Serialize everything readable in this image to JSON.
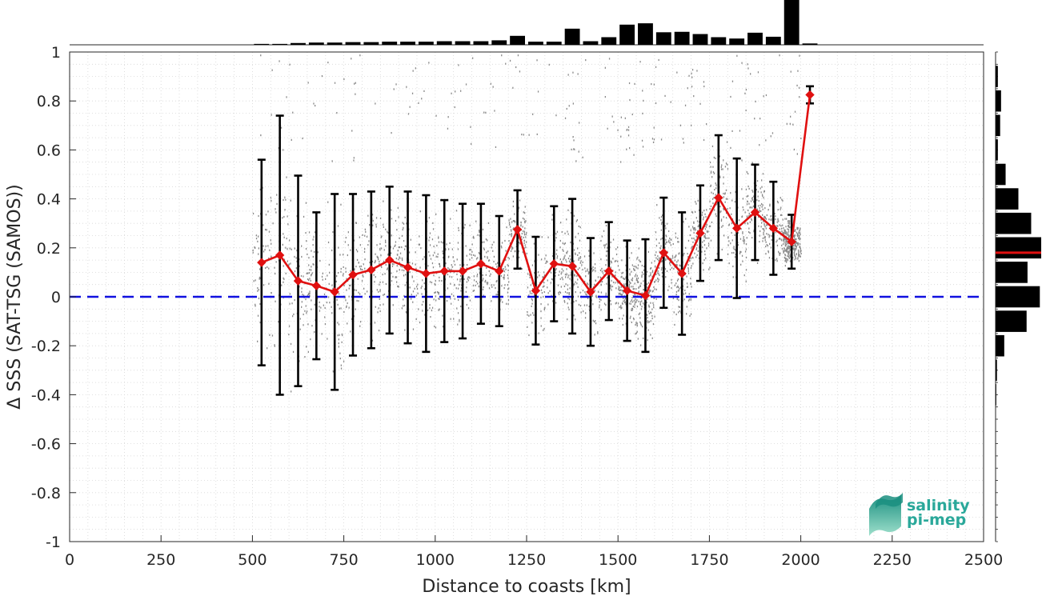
{
  "chart_data": {
    "type": "line",
    "xlabel": "Distance to coasts [km]",
    "ylabel": "Δ SSS (SAT-TSG (SAMOS))",
    "xlim": [
      0,
      2500
    ],
    "ylim": [
      -1,
      1
    ],
    "xticks": [
      0,
      250,
      500,
      750,
      1000,
      1250,
      1500,
      1750,
      2000,
      2250,
      2500
    ],
    "yticks": [
      -1,
      -0.8,
      -0.6,
      -0.4,
      -0.2,
      0,
      0.2,
      0.4,
      0.6,
      0.8,
      1
    ],
    "xtick_labels": [
      "0",
      "250",
      "500",
      "750",
      "1000",
      "1250",
      "1500",
      "1750",
      "2000",
      "2250",
      "2500"
    ],
    "ytick_labels": [
      "-1",
      "-0.8",
      "-0.6",
      "-0.4",
      "-0.2",
      "0",
      "0.2",
      "0.4",
      "0.6",
      "0.8",
      "1"
    ],
    "grid": true,
    "reference_line": {
      "y": 0,
      "style": "dashed",
      "color": "#1010e0"
    },
    "mean_series": {
      "color": "#e01010",
      "x": [
        525,
        575,
        625,
        675,
        725,
        775,
        825,
        875,
        925,
        975,
        1025,
        1075,
        1125,
        1175,
        1225,
        1275,
        1325,
        1375,
        1425,
        1475,
        1525,
        1575,
        1625,
        1675,
        1725,
        1775,
        1825,
        1875,
        1925,
        1975,
        2025
      ],
      "y": [
        0.14,
        0.17,
        0.065,
        0.045,
        0.02,
        0.09,
        0.11,
        0.15,
        0.12,
        0.095,
        0.105,
        0.105,
        0.135,
        0.105,
        0.275,
        0.025,
        0.135,
        0.125,
        0.02,
        0.105,
        0.025,
        0.005,
        0.18,
        0.095,
        0.26,
        0.405,
        0.28,
        0.345,
        0.28,
        0.225,
        0.825
      ],
      "std": [
        0.42,
        0.57,
        0.43,
        0.3,
        0.4,
        0.33,
        0.32,
        0.3,
        0.31,
        0.32,
        0.29,
        0.275,
        0.245,
        0.225,
        0.16,
        0.22,
        0.235,
        0.275,
        0.22,
        0.2,
        0.205,
        0.23,
        0.225,
        0.25,
        0.195,
        0.255,
        0.285,
        0.195,
        0.19,
        0.11,
        0.035
      ]
    },
    "top_histogram": {
      "x": [
        525,
        575,
        625,
        675,
        725,
        775,
        825,
        875,
        925,
        975,
        1025,
        1075,
        1125,
        1175,
        1225,
        1275,
        1325,
        1375,
        1425,
        1475,
        1525,
        1575,
        1625,
        1675,
        1725,
        1775,
        1825,
        1875,
        1925,
        1975,
        2025
      ],
      "counts": [
        0.02,
        0.02,
        0.04,
        0.05,
        0.05,
        0.06,
        0.06,
        0.07,
        0.07,
        0.07,
        0.08,
        0.08,
        0.08,
        0.1,
        0.2,
        0.07,
        0.07,
        0.36,
        0.08,
        0.17,
        0.45,
        0.48,
        0.28,
        0.29,
        0.24,
        0.17,
        0.14,
        0.27,
        0.18,
        1.0,
        0.03
      ]
    },
    "right_histogram": {
      "y": [
        0.9,
        0.8,
        0.7,
        0.6,
        0.5,
        0.4,
        0.3,
        0.2,
        0.1,
        0.0,
        -0.1,
        -0.2,
        -0.3,
        -0.4
      ],
      "counts": [
        0.05,
        0.12,
        0.1,
        0.05,
        0.22,
        0.5,
        0.78,
        1.0,
        0.7,
        0.97,
        0.68,
        0.19,
        0.03,
        0.015
      ],
      "mean_marker": 0.18
    }
  },
  "logo": {
    "line1": "salinity",
    "line2": "pi-mep"
  }
}
